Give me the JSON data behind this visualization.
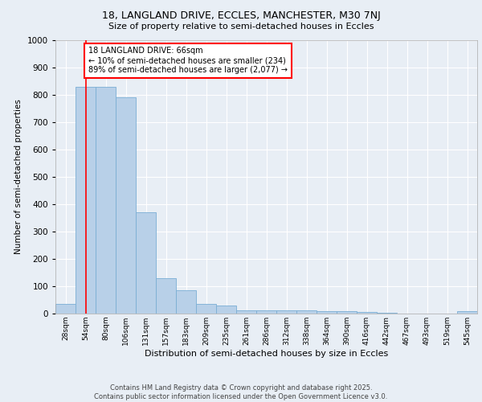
{
  "title1": "18, LANGLAND DRIVE, ECCLES, MANCHESTER, M30 7NJ",
  "title2": "Size of property relative to semi-detached houses in Eccles",
  "xlabel": "Distribution of semi-detached houses by size in Eccles",
  "ylabel": "Number of semi-detached properties",
  "categories": [
    "28sqm",
    "54sqm",
    "80sqm",
    "106sqm",
    "131sqm",
    "157sqm",
    "183sqm",
    "209sqm",
    "235sqm",
    "261sqm",
    "286sqm",
    "312sqm",
    "338sqm",
    "364sqm",
    "390sqm",
    "416sqm",
    "442sqm",
    "467sqm",
    "493sqm",
    "519sqm",
    "545sqm"
  ],
  "values": [
    35,
    830,
    830,
    790,
    370,
    130,
    85,
    35,
    30,
    13,
    13,
    13,
    13,
    8,
    8,
    5,
    3,
    1,
    1,
    1,
    8
  ],
  "bar_color": "#b8d0e8",
  "bar_edgecolor": "#7aaed4",
  "fig_bg_color": "#e8eef5",
  "plot_bg_color": "#e8eef5",
  "grid_color": "#ffffff",
  "annotation_text": "18 LANGLAND DRIVE: 66sqm\n← 10% of semi-detached houses are smaller (234)\n89% of semi-detached houses are larger (2,077) →",
  "redline_x": 1.0,
  "ylim": [
    0,
    1000
  ],
  "yticks": [
    0,
    100,
    200,
    300,
    400,
    500,
    600,
    700,
    800,
    900,
    1000
  ],
  "footer1": "Contains HM Land Registry data © Crown copyright and database right 2025.",
  "footer2": "Contains public sector information licensed under the Open Government Licence v3.0."
}
